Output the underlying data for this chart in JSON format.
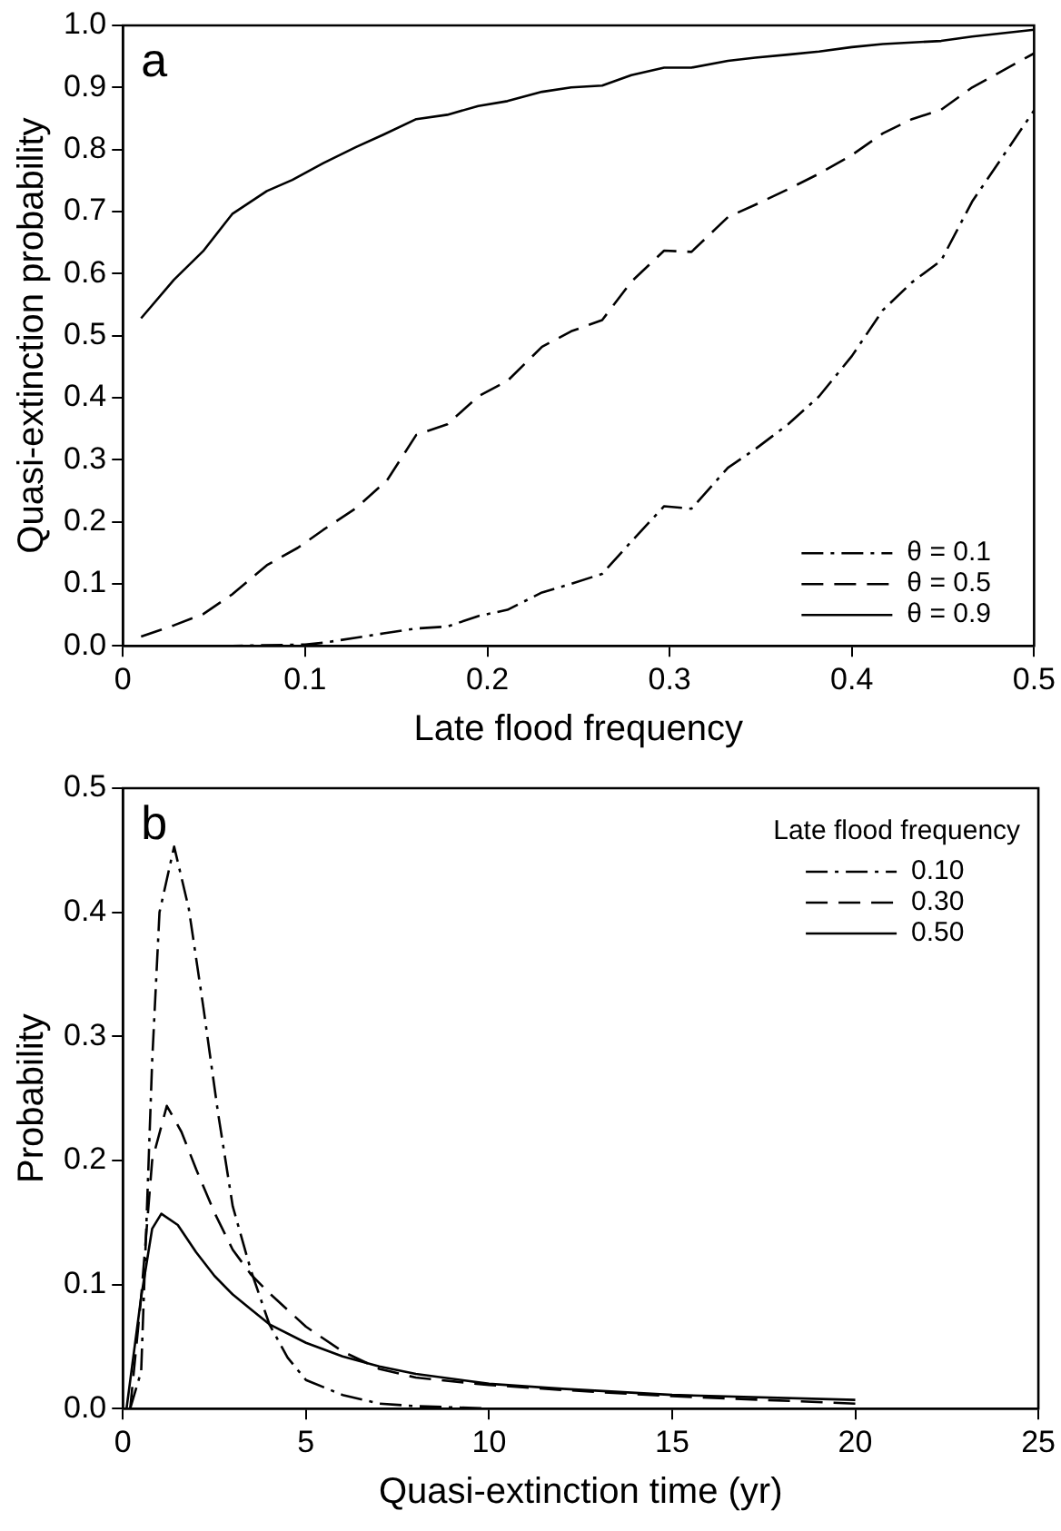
{
  "chart_data": [
    {
      "type": "line",
      "xlabel": "Late flood frequency",
      "ylabel": "Quasi-extinction probability",
      "annotations": [
        "a"
      ],
      "legend": "bottom right",
      "grid": false,
      "marker": "none",
      "xlim": [
        0,
        0.5
      ],
      "xticks": [
        0,
        0.1,
        0.2,
        0.3,
        0.4,
        0.5
      ],
      "ylim": [
        0,
        1
      ],
      "yticks": [
        {
          "value": 0,
          "label": "0.0"
        },
        {
          "value": 0.1,
          "label": "0.1"
        },
        {
          "value": 0.2,
          "label": "0.2"
        },
        {
          "value": 0.3,
          "label": "0.3"
        },
        {
          "value": 0.4,
          "label": "0.4"
        },
        {
          "value": 0.5,
          "label": "0.5"
        },
        {
          "value": 0.6,
          "label": "0.6"
        },
        {
          "value": 0.7,
          "label": "0.7"
        },
        {
          "value": 0.8,
          "label": "0.8"
        },
        {
          "value": 0.9,
          "label": "0.9"
        },
        {
          "value": 1,
          "label": "1.0"
        }
      ],
      "series": [
        {
          "name": "θ = 0.1",
          "color": "#000000",
          "line_style": "dashdot",
          "x": [
            0.01,
            0.06,
            0.1,
            0.11,
            0.128,
            0.143,
            0.161,
            0.178,
            0.195,
            0.211,
            0.23,
            0.246,
            0.263,
            0.279,
            0.297,
            0.312,
            0.332,
            0.347,
            0.365,
            0.382,
            0.4,
            0.417,
            0.433,
            0.449,
            0.466,
            0.5
          ],
          "values": [
            0,
            0,
            0.002,
            0.005,
            0.013,
            0.02,
            0.028,
            0.031,
            0.048,
            0.058,
            0.086,
            0.1,
            0.116,
            0.168,
            0.225,
            0.221,
            0.287,
            0.317,
            0.357,
            0.402,
            0.467,
            0.541,
            0.586,
            0.621,
            0.716,
            0.863
          ]
        },
        {
          "name": "θ = 0.5",
          "color": "#000000",
          "line_style": "dashed",
          "x": [
            0.01,
            0.028,
            0.044,
            0.06,
            0.079,
            0.096,
            0.11,
            0.128,
            0.145,
            0.161,
            0.178,
            0.195,
            0.211,
            0.23,
            0.246,
            0.263,
            0.279,
            0.297,
            0.312,
            0.332,
            0.347,
            0.365,
            0.382,
            0.4,
            0.417,
            0.433,
            0.449,
            0.466,
            0.5
          ],
          "values": [
            0.015,
            0.033,
            0.051,
            0.083,
            0.13,
            0.158,
            0.187,
            0.222,
            0.267,
            0.34,
            0.357,
            0.402,
            0.427,
            0.482,
            0.507,
            0.525,
            0.587,
            0.637,
            0.635,
            0.691,
            0.711,
            0.736,
            0.761,
            0.791,
            0.826,
            0.849,
            0.864,
            0.9,
            0.955
          ]
        },
        {
          "name": "θ = 0.9",
          "color": "#000000",
          "line_style": "solid",
          "x": [
            0.01,
            0.028,
            0.044,
            0.06,
            0.079,
            0.093,
            0.11,
            0.128,
            0.143,
            0.161,
            0.178,
            0.195,
            0.211,
            0.23,
            0.246,
            0.263,
            0.279,
            0.297,
            0.312,
            0.332,
            0.347,
            0.365,
            0.382,
            0.4,
            0.417,
            0.449,
            0.466,
            0.5
          ],
          "values": [
            0.528,
            0.59,
            0.636,
            0.696,
            0.733,
            0.751,
            0.778,
            0.804,
            0.824,
            0.849,
            0.856,
            0.87,
            0.878,
            0.893,
            0.9,
            0.903,
            0.92,
            0.932,
            0.932,
            0.943,
            0.948,
            0.953,
            0.958,
            0.965,
            0.97,
            0.975,
            0.982,
            0.993
          ]
        }
      ]
    },
    {
      "type": "line",
      "xlabel": "Quasi-extinction time (yr)",
      "ylabel": "Probability",
      "annotations": [
        "b"
      ],
      "legend": "top right",
      "legend_title": "Late flood frequency",
      "grid": false,
      "marker": "none",
      "xlim": [
        0,
        25
      ],
      "xticks": [
        0,
        5,
        10,
        15,
        20,
        25
      ],
      "ylim": [
        0,
        0.5
      ],
      "yticks": [
        {
          "value": 0,
          "label": "0.0"
        },
        {
          "value": 0.1,
          "label": "0.1"
        },
        {
          "value": 0.2,
          "label": "0.2"
        },
        {
          "value": 0.3,
          "label": "0.3"
        },
        {
          "value": 0.4,
          "label": "0.4"
        },
        {
          "value": 0.5,
          "label": "0.5"
        }
      ],
      "series": [
        {
          "name": "0.10",
          "color": "#000000",
          "line_style": "dashdot",
          "x": [
            0.2,
            0.5,
            0.8,
            1,
            1.4,
            1.8,
            2.2,
            2.6,
            3,
            3.5,
            4,
            4.5,
            5,
            6,
            7,
            8,
            10,
            15,
            20
          ],
          "values": [
            0,
            0.03,
            0.28,
            0.4,
            0.453,
            0.403,
            0.323,
            0.238,
            0.163,
            0.111,
            0.068,
            0.041,
            0.023,
            0.011,
            0.004,
            0.002,
            0,
            0,
            0
          ]
        },
        {
          "name": "0.30",
          "color": "#000000",
          "line_style": "dashed",
          "x": [
            0.2,
            0.5,
            0.8,
            1.2,
            1.6,
            2,
            2.5,
            3,
            3.5,
            4,
            5,
            6,
            7,
            8,
            10,
            12,
            15,
            20
          ],
          "values": [
            0,
            0.09,
            0.2,
            0.244,
            0.223,
            0.193,
            0.158,
            0.128,
            0.108,
            0.093,
            0.066,
            0.046,
            0.032,
            0.025,
            0.019,
            0.015,
            0.01,
            0.004
          ]
        },
        {
          "name": "0.50",
          "color": "#000000",
          "line_style": "solid",
          "x": [
            0.1,
            0.5,
            0.8,
            1.05,
            1.5,
            2,
            2.5,
            3,
            3.5,
            4,
            5,
            6,
            7,
            8,
            10,
            12,
            15,
            20
          ],
          "values": [
            0,
            0.09,
            0.145,
            0.157,
            0.148,
            0.126,
            0.107,
            0.092,
            0.08,
            0.068,
            0.053,
            0.042,
            0.034,
            0.028,
            0.02,
            0.016,
            0.011,
            0.007
          ]
        }
      ]
    }
  ]
}
